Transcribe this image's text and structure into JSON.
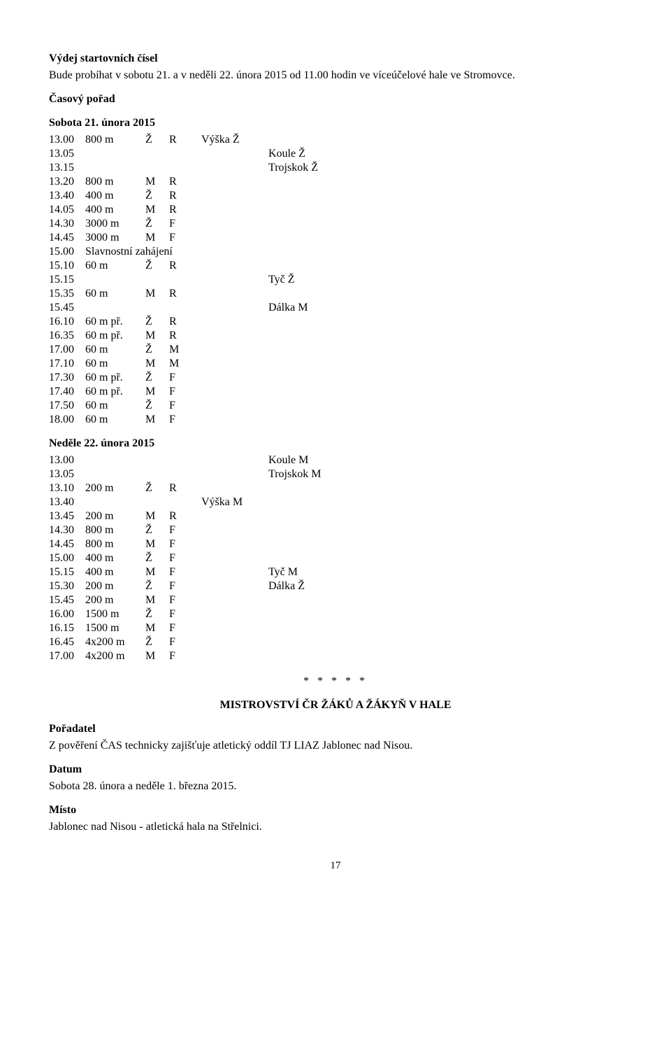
{
  "heading1": "Výdej startovních čísel",
  "para1": "Bude probíhat v sobotu 21. a v neděli 22. února 2015 od 11.00 hodin ve víceúčelové hale ve Stromovce.",
  "heading2": "Časový pořad",
  "day1_title": "Sobota 21. února 2015",
  "day1": [
    {
      "t": "13.00",
      "e": "800 m",
      "c": "Ž",
      "x": "R",
      "n": "Výška Ž",
      "s": ""
    },
    {
      "t": "13.05",
      "e": "",
      "c": "",
      "x": "",
      "n": "",
      "s": "Koule Ž"
    },
    {
      "t": "13.15",
      "e": "",
      "c": "",
      "x": "",
      "n": "",
      "s": "Trojskok Ž"
    },
    {
      "t": "13.20",
      "e": "800 m",
      "c": "M",
      "x": "R",
      "n": "",
      "s": ""
    },
    {
      "t": "13.40",
      "e": "400 m",
      "c": "Ž",
      "x": "R",
      "n": "",
      "s": ""
    },
    {
      "t": "14.05",
      "e": "400 m",
      "c": "M",
      "x": "R",
      "n": "",
      "s": ""
    },
    {
      "t": "14.30",
      "e": "3000 m",
      "c": "Ž",
      "x": "F",
      "n": "",
      "s": ""
    },
    {
      "t": "14.45",
      "e": "3000 m",
      "c": "M",
      "x": "F",
      "n": "",
      "s": ""
    },
    {
      "t": "15.00",
      "e": "Slavnostní zahájení",
      "c": "",
      "x": "",
      "n": "",
      "s": ""
    },
    {
      "t": "15.10",
      "e": "60 m",
      "c": "Ž",
      "x": "R",
      "n": "",
      "s": ""
    },
    {
      "t": "15.15",
      "e": "",
      "c": "",
      "x": "",
      "n": "",
      "s": "Tyč Ž"
    },
    {
      "t": "15.35",
      "e": "60 m",
      "c": "M",
      "x": "R",
      "n": "",
      "s": ""
    },
    {
      "t": "15.45",
      "e": "",
      "c": "",
      "x": "",
      "n": "",
      "s": "Dálka M"
    },
    {
      "t": "16.10",
      "e": "60 m př.",
      "c": "Ž",
      "x": "R",
      "n": "",
      "s": ""
    },
    {
      "t": "16.35",
      "e": "60 m př.",
      "c": "M",
      "x": "R",
      "n": "",
      "s": ""
    },
    {
      "t": "17.00",
      "e": "60 m",
      "c": "Ž",
      "x": "M",
      "n": "",
      "s": ""
    },
    {
      "t": "17.10",
      "e": "60 m",
      "c": "M",
      "x": "M",
      "n": "",
      "s": ""
    },
    {
      "t": "17.30",
      "e": "60 m př.",
      "c": "Ž",
      "x": "F",
      "n": "",
      "s": ""
    },
    {
      "t": "17.40",
      "e": "60 m př.",
      "c": "M",
      "x": "F",
      "n": "",
      "s": ""
    },
    {
      "t": "17.50",
      "e": "60 m",
      "c": "Ž",
      "x": "F",
      "n": "",
      "s": ""
    },
    {
      "t": "18.00",
      "e": "60 m",
      "c": "M",
      "x": "F",
      "n": "",
      "s": ""
    }
  ],
  "day2_title": "Neděle 22. února 2015",
  "day2": [
    {
      "t": "13.00",
      "e": "",
      "c": "",
      "x": "",
      "n": "",
      "s": "Koule M"
    },
    {
      "t": "13.05",
      "e": "",
      "c": "",
      "x": "",
      "n": "",
      "s": "Trojskok M"
    },
    {
      "t": "13.10",
      "e": "200 m",
      "c": "Ž",
      "x": "R",
      "n": "",
      "s": ""
    },
    {
      "t": "13.40",
      "e": "",
      "c": "",
      "x": "",
      "n": "Výška M",
      "s": ""
    },
    {
      "t": "13.45",
      "e": "200 m",
      "c": "M",
      "x": "R",
      "n": "",
      "s": ""
    },
    {
      "t": "14.30",
      "e": "800 m",
      "c": "Ž",
      "x": "F",
      "n": "",
      "s": ""
    },
    {
      "t": "14.45",
      "e": "800 m",
      "c": "M",
      "x": "F",
      "n": "",
      "s": ""
    },
    {
      "t": "15.00",
      "e": "400 m",
      "c": "Ž",
      "x": "F",
      "n": "",
      "s": ""
    },
    {
      "t": "15.15",
      "e": "400 m",
      "c": "M",
      "x": "F",
      "n": "",
      "s": "Tyč M"
    },
    {
      "t": "15.30",
      "e": "200 m",
      "c": "Ž",
      "x": "F",
      "n": "",
      "s": "Dálka Ž"
    },
    {
      "t": "15.45",
      "e": "200 m",
      "c": "M",
      "x": "F",
      "n": "",
      "s": ""
    },
    {
      "t": "16.00",
      "e": "1500 m",
      "c": "Ž",
      "x": "F",
      "n": "",
      "s": ""
    },
    {
      "t": "16.15",
      "e": "1500 m",
      "c": "M",
      "x": "F",
      "n": "",
      "s": ""
    },
    {
      "t": "16.45",
      "e": "4x200 m",
      "c": "Ž",
      "x": "F",
      "n": "",
      "s": ""
    },
    {
      "t": "17.00",
      "e": "4x200 m",
      "c": "M",
      "x": "F",
      "n": "",
      "s": ""
    }
  ],
  "stars": "* * * * *",
  "meeting_title": "MISTROVSTVÍ ČR ŽÁKŮ A ŽÁKYŇ V HALE",
  "poradatel_h": "Pořadatel",
  "poradatel_p": "Z pověření ČAS technicky zajišťuje atletický oddíl TJ LIAZ Jablonec nad Nisou.",
  "datum_h": "Datum",
  "datum_p": "Sobota 28. února a neděle 1. března 2015.",
  "misto_h": "Místo",
  "misto_p": "Jablonec nad Nisou - atletická hala na Střelnici.",
  "page_num": "17"
}
